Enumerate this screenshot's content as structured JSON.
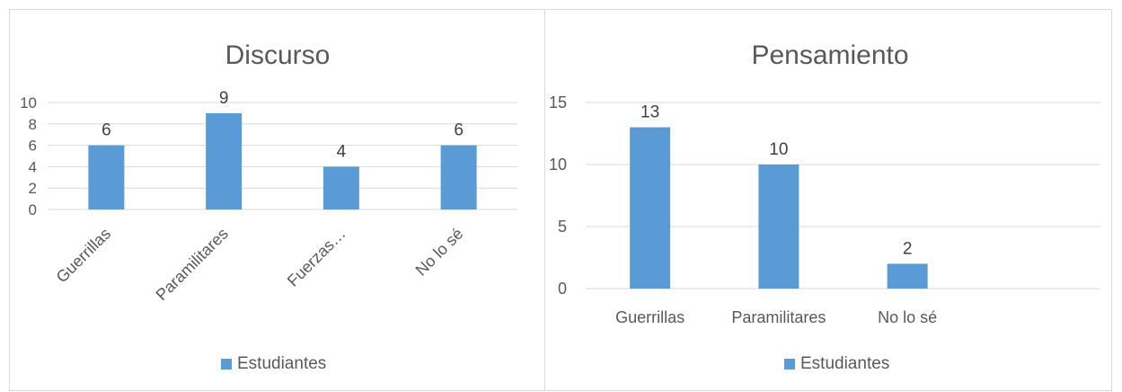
{
  "chart_data": [
    {
      "type": "bar",
      "title": "Discurso",
      "categories": [
        "Guerrillas",
        "Paramilitares",
        "Fuerzas…",
        "No lo sé"
      ],
      "series": [
        {
          "name": "Estudiantes",
          "values": [
            6,
            9,
            4,
            6
          ]
        }
      ],
      "ylim": [
        0,
        10
      ],
      "yticks": [
        0,
        2,
        4,
        6,
        8,
        10
      ],
      "legend": "bottom",
      "grid": true,
      "color": "#5b9bd5"
    },
    {
      "type": "bar",
      "title": "Pensamiento",
      "categories": [
        "Guerrillas",
        "Paramilitares",
        "No lo sé",
        ""
      ],
      "series": [
        {
          "name": "Estudiantes",
          "values": [
            13,
            10,
            2,
            null
          ]
        }
      ],
      "ylim": [
        0,
        15
      ],
      "yticks": [
        0,
        5,
        10,
        15
      ],
      "legend": "bottom",
      "grid": true,
      "color": "#5b9bd5"
    }
  ]
}
